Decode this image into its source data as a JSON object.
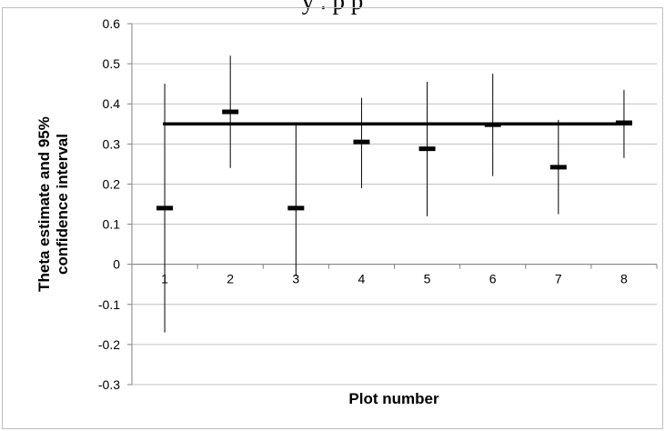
{
  "header_fragment": "y  .        p                                                  p",
  "chart_data": {
    "type": "scatter",
    "title": "",
    "xlabel": "Plot number",
    "ylabel_lines": [
      "Theta estimate and 95%",
      "confidence interval"
    ],
    "ylim": [
      -0.3,
      0.6
    ],
    "yticks": [
      "0.6",
      "0.5",
      "0.4",
      "0.3",
      "0.2",
      "0.1",
      "0",
      "-0.1",
      "-0.2",
      "-0.3"
    ],
    "ytick_values": [
      0.6,
      0.5,
      0.4,
      0.3,
      0.2,
      0.1,
      0,
      -0.1,
      -0.2,
      -0.3
    ],
    "categories": [
      "1",
      "2",
      "3",
      "4",
      "5",
      "6",
      "7",
      "8"
    ],
    "series": [
      {
        "estimate": [
          0.14,
          0.38,
          0.14,
          0.305,
          0.288,
          0.348,
          0.242,
          0.353
        ],
        "lower": [
          -0.17,
          0.24,
          -0.03,
          0.19,
          0.12,
          0.22,
          0.125,
          0.265
        ],
        "upper": [
          0.45,
          0.52,
          0.35,
          0.415,
          0.455,
          0.475,
          0.36,
          0.435
        ]
      }
    ],
    "reference_line": 0.35,
    "grid": true,
    "legend": "none",
    "colors": {
      "marks": "#000000",
      "grid": "#c0c0c0",
      "axis": "#808080"
    }
  }
}
